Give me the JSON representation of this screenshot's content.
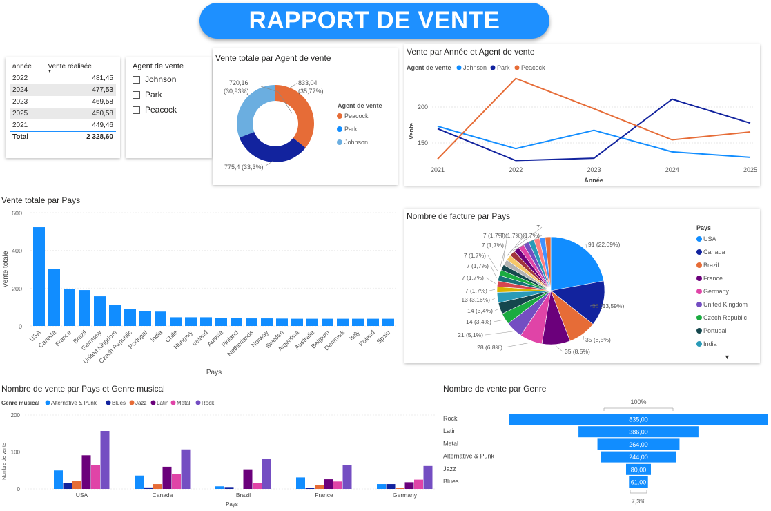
{
  "header": {
    "title": "RAPPORT DE VENTE"
  },
  "year_table": {
    "col_year": "année",
    "col_sales": "Vente réalisée",
    "rows": [
      {
        "year": "2022",
        "value": "481,45"
      },
      {
        "year": "2024",
        "value": "477,53"
      },
      {
        "year": "2023",
        "value": "469,58"
      },
      {
        "year": "2025",
        "value": "450,58"
      },
      {
        "year": "2021",
        "value": "449,46"
      }
    ],
    "total_label": "Total",
    "total_value": "2 328,60"
  },
  "slicer": {
    "title": "Agent de vente",
    "items": [
      {
        "label": "Johnson"
      },
      {
        "label": "Park"
      },
      {
        "label": "Peacock"
      }
    ]
  },
  "colors": {
    "johnson": "#118DFF",
    "park": "#12239E",
    "peacock": "#E66C37",
    "johnson_donut": "#6BAEE0",
    "accent": "#1E90FF"
  },
  "donut": {
    "title": "Vente totale par Agent de vente",
    "legend_title": "Agent de vente",
    "labels": {
      "peacock": "833,04",
      "peacock_pct": "(35,77%)",
      "park": "775,4 (33,3%)",
      "johnson": "720,16",
      "johnson_pct": "(30,93%)"
    },
    "chart_data": {
      "type": "pie",
      "categories": [
        "Peacock",
        "Park",
        "Johnson"
      ],
      "values": [
        833.04,
        775.4,
        720.16
      ]
    }
  },
  "line": {
    "title": "Vente par Année et Agent de vente",
    "legend_title": "Agent de vente",
    "xlabel": "Année",
    "ylabel": "Vente",
    "y_ticks": [
      "200",
      "150"
    ],
    "chart_data": {
      "type": "line",
      "x": [
        "2021",
        "2022",
        "2023",
        "2024",
        "2025"
      ],
      "series": [
        {
          "name": "Johnson",
          "values": [
            164,
            136,
            159,
            132,
            125
          ]
        },
        {
          "name": "Park",
          "values": [
            161,
            121,
            124,
            198,
            168
          ]
        },
        {
          "name": "Peacock",
          "values": [
            123,
            224,
            186,
            147,
            157
          ]
        }
      ],
      "ylim": [
        118,
        228
      ]
    }
  },
  "bar_country": {
    "title": "Vente totale par Pays",
    "xlabel": "Pays",
    "ylabel": "Vente totale",
    "y_ticks": [
      "600",
      "400",
      "200",
      "0"
    ],
    "chart_data": {
      "type": "bar",
      "categories": [
        "USA",
        "Canada",
        "France",
        "Brazil",
        "Germany",
        "United Kingdom",
        "Czech Republic",
        "Portugal",
        "India",
        "Chile",
        "Hungary",
        "Ireland",
        "Austria",
        "Finland",
        "Netherlands",
        "Norway",
        "Sweden",
        "Argentina",
        "Australia",
        "Belgium",
        "Denmark",
        "Italy",
        "Poland",
        "Spain"
      ],
      "values": [
        523,
        303,
        195,
        190,
        157,
        112,
        90,
        77,
        76,
        46,
        46,
        46,
        42,
        41,
        40,
        40,
        39,
        38,
        38,
        38,
        38,
        38,
        38,
        38
      ],
      "ylim": [
        0,
        600
      ]
    }
  },
  "pie_invoice": {
    "title": "Nombre de facture par Pays",
    "legend_title": "Pays",
    "legend": [
      {
        "label": "USA",
        "color": "#118DFF"
      },
      {
        "label": "Canada",
        "color": "#12239E"
      },
      {
        "label": "Brazil",
        "color": "#E66C37"
      },
      {
        "label": "France",
        "color": "#6B007B"
      },
      {
        "label": "Germany",
        "color": "#E044A7"
      },
      {
        "label": "United Kingdom",
        "color": "#744EC2"
      },
      {
        "label": "Czech Republic",
        "color": "#1AAB40"
      },
      {
        "label": "Portugal",
        "color": "#15474D"
      },
      {
        "label": "India",
        "color": "#2A9BB8"
      }
    ],
    "labels": [
      "91 (22,09%)",
      "56 (13,59%)",
      "35 (8,5%)",
      "35 (8,5%)",
      "28 (6,8%)",
      "21 (5,1%)",
      "14 (3,4%)",
      "14 (3,4%)",
      "13 (3,16%)",
      "7 (1,7%)",
      "7 (1,7%)",
      "7 (1,7%)",
      "7 (1,7%)",
      "7 (1,7%)",
      "7 (1,7%)",
      "7 (1,7%)",
      "(1,7%)",
      "7"
    ],
    "chart_data": {
      "type": "pie",
      "categories": [
        "USA",
        "Canada",
        "Brazil",
        "France",
        "Germany",
        "United Kingdom",
        "Czech Republic",
        "Portugal",
        "India",
        "Chile",
        "Hungary",
        "Ireland",
        "Austria",
        "Finland",
        "Netherlands",
        "Norway",
        "Sweden",
        "Argentina",
        "Australia",
        "Belgium",
        "Denmark",
        "Italy",
        "Poland",
        "Spain"
      ],
      "values": [
        91,
        56,
        35,
        35,
        28,
        21,
        14,
        14,
        13,
        7,
        7,
        7,
        7,
        7,
        7,
        7,
        7,
        7,
        7,
        7,
        7,
        7,
        7,
        7
      ]
    }
  },
  "grouped": {
    "title": "Nombre de vente par Pays et Genre musical",
    "legend_title": "Genre musical",
    "xlabel": "Pays",
    "ylabel": "Nombre de vente",
    "y_ticks": [
      "200",
      "100",
      "0"
    ],
    "genre_colors": [
      "#118DFF",
      "#12239E",
      "#E66C37",
      "#6B007B",
      "#E044A7",
      "#744EC2"
    ],
    "chart_data": {
      "type": "bar",
      "categories": [
        "USA",
        "Canada",
        "Brazil",
        "France",
        "Germany"
      ],
      "series": [
        {
          "name": "Alternative & Punk",
          "values": [
            50,
            36,
            7,
            31,
            13
          ]
        },
        {
          "name": "Blues",
          "values": [
            15,
            4,
            5,
            2,
            13
          ]
        },
        {
          "name": "Jazz",
          "values": [
            22,
            13,
            0,
            11,
            2
          ]
        },
        {
          "name": "Latin",
          "values": [
            91,
            60,
            53,
            26,
            18
          ]
        },
        {
          "name": "Metal",
          "values": [
            64,
            40,
            15,
            20,
            25
          ]
        },
        {
          "name": "Rock",
          "values": [
            157,
            107,
            81,
            65,
            62
          ]
        }
      ],
      "ylim": [
        0,
        200
      ]
    }
  },
  "funnel": {
    "title": "Nombre de vente par Genre",
    "top_pct": "100%",
    "bottom_pct": "7,3%",
    "value_labels": [
      "835,00",
      "386,00",
      "264,00",
      "244,00",
      "80,00",
      "61,00"
    ],
    "chart_data": {
      "type": "bar",
      "categories": [
        "Rock",
        "Latin",
        "Metal",
        "Alternative & Punk",
        "Jazz",
        "Blues"
      ],
      "values": [
        835,
        386,
        264,
        244,
        80,
        61
      ]
    }
  }
}
